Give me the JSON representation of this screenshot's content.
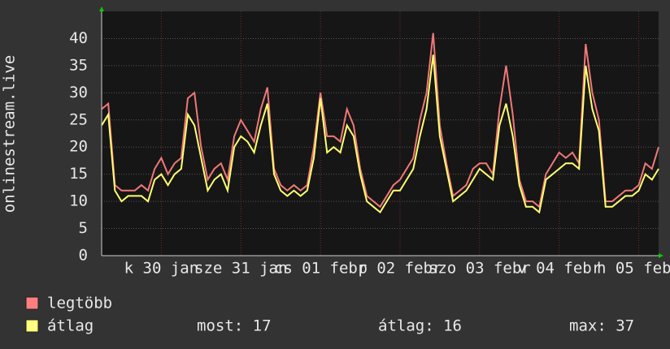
{
  "chart_data": {
    "type": "line",
    "y_label": "onlinestream.live",
    "x": [
      0,
      2,
      4,
      6,
      8,
      10,
      12,
      14,
      16,
      18,
      20,
      22,
      24,
      26,
      28,
      30,
      32,
      34,
      36,
      38,
      40,
      42,
      44,
      46,
      48,
      50,
      52,
      54,
      56,
      58,
      60,
      62,
      64,
      66,
      68,
      70,
      72,
      74,
      76,
      78,
      80,
      82,
      84,
      86,
      88,
      90,
      92,
      94,
      96,
      98,
      100,
      102,
      104,
      106,
      108,
      110,
      112,
      114,
      116,
      118,
      120,
      122,
      124,
      126,
      128,
      130,
      132,
      134,
      136,
      138,
      140,
      142,
      144,
      146,
      148,
      150,
      152,
      154,
      156,
      158,
      160,
      162,
      164,
      166,
      168
    ],
    "series": [
      {
        "name": "legtöbb",
        "color": "#f07878",
        "legend_color": "#ff7f7f",
        "values": [
          27,
          28,
          13,
          12,
          12,
          12,
          13,
          12,
          16,
          18,
          15,
          17,
          18,
          29,
          30,
          20,
          14,
          16,
          17,
          14,
          22,
          25,
          23,
          21,
          27,
          31,
          16,
          13,
          12,
          13,
          12,
          13,
          20,
          30,
          22,
          22,
          21,
          27,
          24,
          16,
          11,
          10,
          9,
          11,
          13,
          14,
          16,
          18,
          25,
          30,
          41,
          24,
          17,
          11,
          12,
          13,
          16,
          17,
          17,
          15,
          27,
          35,
          26,
          14,
          10,
          10,
          9,
          15,
          17,
          19,
          18,
          19,
          17,
          39,
          30,
          25,
          10,
          10,
          11,
          12,
          12,
          13,
          17,
          16,
          20
        ]
      },
      {
        "name": "átlag",
        "color": "#ffff70",
        "legend_color": "#ffff7f",
        "values": [
          24,
          26,
          12,
          10,
          11,
          11,
          11,
          10,
          14,
          15,
          13,
          15,
          16,
          26,
          24,
          18,
          12,
          14,
          15,
          12,
          20,
          22,
          21,
          19,
          24,
          28,
          15,
          12,
          11,
          12,
          11,
          12,
          18,
          29,
          19,
          20,
          19,
          24,
          22,
          15,
          10,
          9,
          8,
          10,
          12,
          12,
          14,
          16,
          22,
          27,
          37,
          22,
          16,
          10,
          11,
          12,
          14,
          16,
          15,
          14,
          24,
          28,
          22,
          13,
          9,
          9,
          8,
          14,
          15,
          16,
          17,
          17,
          16,
          35,
          27,
          23,
          9,
          9,
          10,
          11,
          11,
          12,
          15,
          14,
          16
        ]
      }
    ],
    "xlim": [
      0,
      168
    ],
    "xticks": [
      {
        "value": 18,
        "label": "k 30 jan"
      },
      {
        "value": 42,
        "label": "sze 31 jan"
      },
      {
        "value": 66,
        "label": "cs 01 febr"
      },
      {
        "value": 90,
        "label": "p 02 febr"
      },
      {
        "value": 114,
        "label": "szo 03 febr"
      },
      {
        "value": 138,
        "label": "v 04 febr"
      },
      {
        "value": 162,
        "label": "h 05 febr"
      }
    ],
    "ylim": [
      0,
      45
    ],
    "yticks": [
      0,
      5,
      10,
      15,
      20,
      25,
      30,
      35,
      40
    ],
    "grid": true,
    "stats": [
      "most: 17",
      "átlag: 16",
      "max: 37"
    ]
  }
}
